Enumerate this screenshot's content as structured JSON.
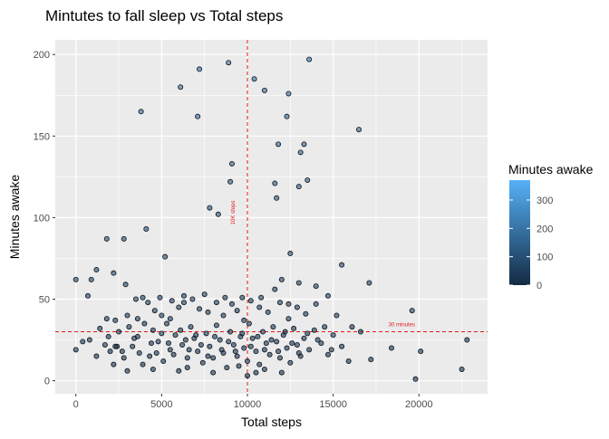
{
  "chart_data": {
    "type": "scatter",
    "title": "Mintutes to fall sleep vs Total steps",
    "xlabel": "Total steps",
    "ylabel": "Minutes awake",
    "xlim": [
      -1200,
      24000
    ],
    "ylim": [
      -8,
      209
    ],
    "x_ticks": [
      0,
      5000,
      10000,
      15000,
      20000
    ],
    "x_tick_labels": [
      "0",
      "5000",
      "10000",
      "15000",
      "20000"
    ],
    "y_ticks": [
      0,
      50,
      100,
      150,
      200
    ],
    "y_tick_labels": [
      "0",
      "50",
      "100",
      "150",
      "200"
    ],
    "grid": true,
    "reference_lines": [
      {
        "axis": "x",
        "value": 10000,
        "label": "10K steps",
        "color": "#e41a1c"
      },
      {
        "axis": "y",
        "value": 30,
        "label": "30 minutes",
        "color": "#e41a1c"
      }
    ],
    "legend": {
      "title": "Minutes awake",
      "placement": "right",
      "ticks": [
        0,
        100,
        200,
        300
      ],
      "tick_labels": [
        "0",
        "100",
        "200",
        "300"
      ],
      "range": [
        0,
        370
      ],
      "color_low": "#132b43",
      "color_high": "#56b1f7"
    },
    "colors": {
      "panel": "#ebebeb",
      "grid": "#ffffff",
      "point_outline": "#0d1620"
    },
    "points": [
      [
        0,
        62
      ],
      [
        0,
        19
      ],
      [
        400,
        24
      ],
      [
        700,
        52
      ],
      [
        900,
        62
      ],
      [
        1200,
        68
      ],
      [
        1800,
        87
      ],
      [
        2000,
        18
      ],
      [
        2200,
        66
      ],
      [
        2800,
        87
      ],
      [
        2900,
        59
      ],
      [
        3800,
        165
      ],
      [
        4100,
        93
      ],
      [
        5200,
        76
      ],
      [
        6100,
        180
      ],
      [
        7100,
        162
      ],
      [
        7200,
        191
      ],
      [
        7800,
        106
      ],
      [
        8300,
        102
      ],
      [
        8900,
        195
      ],
      [
        9100,
        133
      ],
      [
        9000,
        122
      ],
      [
        10400,
        185
      ],
      [
        11000,
        178
      ],
      [
        11800,
        145
      ],
      [
        11600,
        121
      ],
      [
        11700,
        112
      ],
      [
        12300,
        162
      ],
      [
        12400,
        176
      ],
      [
        12500,
        78
      ],
      [
        13000,
        119
      ],
      [
        13100,
        140
      ],
      [
        13300,
        145
      ],
      [
        13600,
        197
      ],
      [
        13500,
        123
      ],
      [
        12000,
        62
      ],
      [
        13000,
        60
      ],
      [
        12400,
        47
      ],
      [
        11600,
        56
      ],
      [
        14000,
        58
      ],
      [
        15500,
        71
      ],
      [
        16500,
        154
      ],
      [
        17100,
        60
      ],
      [
        19600,
        43
      ],
      [
        19800,
        1
      ],
      [
        20100,
        18
      ],
      [
        22500,
        7
      ],
      [
        22800,
        25
      ],
      [
        1800,
        38
      ],
      [
        2300,
        37
      ],
      [
        3000,
        40
      ],
      [
        3500,
        50
      ],
      [
        4200,
        48
      ],
      [
        4600,
        43
      ],
      [
        5000,
        40
      ],
      [
        5500,
        38
      ],
      [
        6000,
        45
      ],
      [
        6300,
        48
      ],
      [
        6800,
        50
      ],
      [
        7200,
        44
      ],
      [
        7700,
        42
      ],
      [
        8200,
        48
      ],
      [
        8600,
        40
      ],
      [
        9100,
        47
      ],
      [
        9400,
        43
      ],
      [
        9800,
        37
      ],
      [
        10200,
        49
      ],
      [
        10700,
        45
      ],
      [
        11200,
        42
      ],
      [
        11900,
        48
      ],
      [
        12400,
        38
      ],
      [
        12900,
        45
      ],
      [
        13400,
        41
      ],
      [
        14000,
        47
      ],
      [
        14700,
        52
      ],
      [
        15200,
        40
      ],
      [
        16100,
        33
      ],
      [
        16600,
        30
      ],
      [
        17200,
        13
      ],
      [
        18400,
        20
      ],
      [
        800,
        25
      ],
      [
        1200,
        15
      ],
      [
        1700,
        22
      ],
      [
        2200,
        10
      ],
      [
        2500,
        30
      ],
      [
        2700,
        18
      ],
      [
        3100,
        33
      ],
      [
        3300,
        21
      ],
      [
        3600,
        27
      ],
      [
        3900,
        10
      ],
      [
        4300,
        15
      ],
      [
        4500,
        31
      ],
      [
        4800,
        24
      ],
      [
        5100,
        12
      ],
      [
        5300,
        35
      ],
      [
        5500,
        19
      ],
      [
        5800,
        28
      ],
      [
        6000,
        6
      ],
      [
        6200,
        22
      ],
      [
        6500,
        14
      ],
      [
        6700,
        33
      ],
      [
        6900,
        26
      ],
      [
        7100,
        18
      ],
      [
        7400,
        11
      ],
      [
        7600,
        29
      ],
      [
        7800,
        21
      ],
      [
        8000,
        14
      ],
      [
        8200,
        34
      ],
      [
        8400,
        25
      ],
      [
        8600,
        17
      ],
      [
        8800,
        8
      ],
      [
        9000,
        30
      ],
      [
        9200,
        22
      ],
      [
        9400,
        15
      ],
      [
        9600,
        27
      ],
      [
        9800,
        20
      ],
      [
        10000,
        12
      ],
      [
        10100,
        35
      ],
      [
        10300,
        26
      ],
      [
        10500,
        18
      ],
      [
        10700,
        10
      ],
      [
        10900,
        30
      ],
      [
        11100,
        23
      ],
      [
        11300,
        16
      ],
      [
        11500,
        33
      ],
      [
        11700,
        24
      ],
      [
        11900,
        14
      ],
      [
        12100,
        28
      ],
      [
        12300,
        20
      ],
      [
        12500,
        11
      ],
      [
        12700,
        32
      ],
      [
        12900,
        22
      ],
      [
        13100,
        15
      ],
      [
        13300,
        26
      ],
      [
        13600,
        19
      ],
      [
        13900,
        31
      ],
      [
        14300,
        23
      ],
      [
        14700,
        16
      ],
      [
        15000,
        28
      ],
      [
        15500,
        21
      ],
      [
        15900,
        12
      ],
      [
        1400,
        32
      ],
      [
        1900,
        27
      ],
      [
        2400,
        21
      ],
      [
        2800,
        14
      ],
      [
        3400,
        26
      ],
      [
        3700,
        17
      ],
      [
        4000,
        35
      ],
      [
        4400,
        23
      ],
      [
        4700,
        17
      ],
      [
        5000,
        29
      ],
      [
        5400,
        23
      ],
      [
        5700,
        16
      ],
      [
        6100,
        31
      ],
      [
        6400,
        25
      ],
      [
        6600,
        19
      ],
      [
        7000,
        28
      ],
      [
        7300,
        22
      ],
      [
        7700,
        15
      ],
      [
        8100,
        27
      ],
      [
        8500,
        19
      ],
      [
        8900,
        24
      ],
      [
        9300,
        18
      ],
      [
        9700,
        29
      ],
      [
        10200,
        21
      ],
      [
        10600,
        27
      ],
      [
        11000,
        19
      ],
      [
        11400,
        25
      ],
      [
        11800,
        18
      ],
      [
        12200,
        30
      ],
      [
        12600,
        23
      ],
      [
        13000,
        17
      ],
      [
        13500,
        29
      ],
      [
        14100,
        25
      ],
      [
        14500,
        33
      ],
      [
        14900,
        19
      ],
      [
        5600,
        49
      ],
      [
        6300,
        52
      ],
      [
        7500,
        53
      ],
      [
        8700,
        51
      ],
      [
        9700,
        51
      ],
      [
        10800,
        51
      ],
      [
        3900,
        51
      ],
      [
        4900,
        51
      ],
      [
        2300,
        21
      ],
      [
        3600,
        38
      ],
      [
        10000,
        3
      ],
      [
        9500,
        9
      ],
      [
        10500,
        5
      ],
      [
        8000,
        5
      ],
      [
        11000,
        7
      ],
      [
        12000,
        5
      ],
      [
        6500,
        8
      ],
      [
        4500,
        7
      ],
      [
        3000,
        6
      ]
    ]
  }
}
